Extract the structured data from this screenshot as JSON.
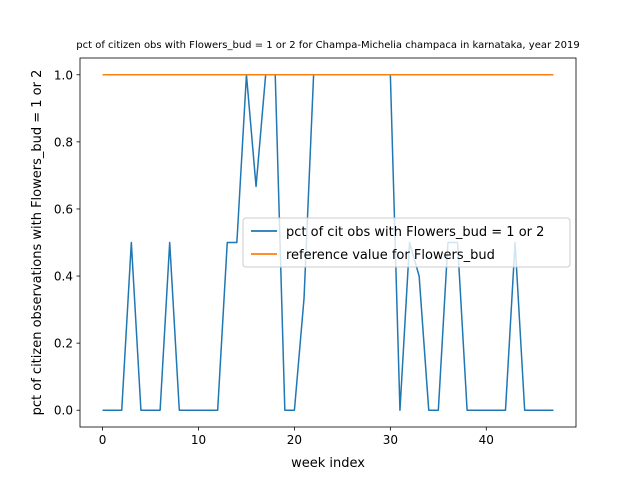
{
  "chart_data": {
    "type": "line",
    "title": "pct of citizen obs with Flowers_bud = 1 or 2 for Champa-Michelia champaca in karnataka, year 2019",
    "xlabel": "week index",
    "ylabel": "pct of citizen observations with Flowers_bud = 1 or 2",
    "xlim": [
      -2.35,
      49.35
    ],
    "ylim": [
      -0.05,
      1.05
    ],
    "xticks": [
      0,
      10,
      20,
      30,
      40
    ],
    "yticks": [
      0.0,
      0.2,
      0.4,
      0.6,
      0.8,
      1.0
    ],
    "xtick_labels": [
      "0",
      "10",
      "20",
      "30",
      "40"
    ],
    "ytick_labels": [
      "0.0",
      "0.2",
      "0.4",
      "0.6",
      "0.8",
      "1.0"
    ],
    "grid": false,
    "legend_position": "center-right",
    "series": [
      {
        "name": "pct of cit obs with Flowers_bud = 1 or 2",
        "color": "#1f77b4",
        "x": [
          0,
          1,
          2,
          3,
          4,
          5,
          6,
          7,
          8,
          9,
          10,
          11,
          12,
          13,
          14,
          15,
          16,
          17,
          18,
          19,
          20,
          21,
          22,
          23,
          24,
          25,
          26,
          27,
          28,
          29,
          30,
          31,
          32,
          33,
          34,
          35,
          36,
          37,
          38,
          39,
          40,
          41,
          42,
          43,
          44,
          45,
          46,
          47
        ],
        "values": [
          0,
          0,
          0,
          0.5,
          0,
          0,
          0,
          0.5,
          0,
          0,
          0,
          0,
          0,
          0.5,
          0.5,
          1,
          0.667,
          1,
          1,
          0,
          0,
          0.333,
          1,
          1,
          1,
          1,
          1,
          1,
          1,
          1,
          1,
          0,
          0.5,
          0.4,
          0,
          0,
          0.5,
          0.5,
          0,
          0,
          0,
          0,
          0,
          0.5,
          0,
          0,
          0,
          0
        ]
      },
      {
        "name": "reference value for Flowers_bud",
        "color": "#ff7f0e",
        "x": [
          0,
          47
        ],
        "values": [
          1,
          1
        ]
      }
    ]
  }
}
